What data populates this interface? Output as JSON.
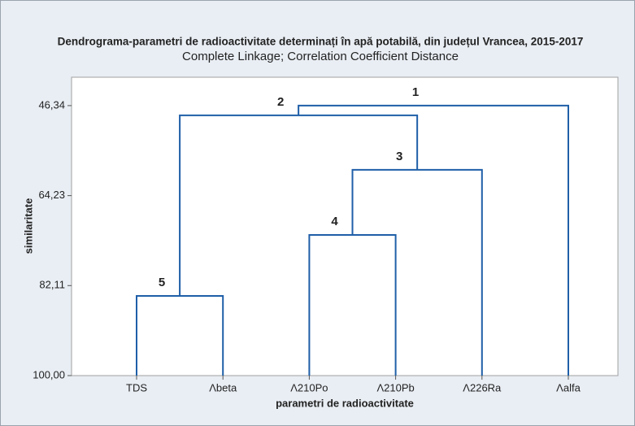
{
  "chart_data": {
    "type": "dendrogram",
    "title": "Dendrograma-parametri de radioactivitate determinați în apă potabilă, din județul Vrancea, 2015-2017",
    "subtitle": "Complete Linkage; Correlation Coefficient Distance",
    "x_label": "parametri de radioactivitate",
    "y_label": "similaritate",
    "categories": [
      "TDS",
      "Λbeta",
      "Λ210Po",
      "Λ210Pb",
      "Λ226Ra",
      "Λalfa"
    ],
    "merges": [
      {
        "label": "5",
        "left": {
          "leaf": 0
        },
        "right": {
          "leaf": 1
        },
        "value": 84.16
      },
      {
        "label": "4",
        "left": {
          "leaf": 2
        },
        "right": {
          "leaf": 3
        },
        "value": 72.04
      },
      {
        "label": "3",
        "left": {
          "merge": 1
        },
        "right": {
          "leaf": 4
        },
        "value": 59.11
      },
      {
        "label": "2",
        "left": {
          "merge": 0
        },
        "right": {
          "merge": 2
        },
        "value": 48.28
      },
      {
        "label": "1",
        "left": {
          "merge": 3
        },
        "right": {
          "leaf": 5
        },
        "value": 46.34
      }
    ],
    "color": "#1f5fa8",
    "ylim": [
      100,
      40.7
    ],
    "yticks": [
      {
        "value": 46.34,
        "label": "46,34"
      },
      {
        "value": 64.23,
        "label": "64,23"
      },
      {
        "value": 82.11,
        "label": "82,11"
      },
      {
        "value": 100,
        "label": "100,00"
      }
    ]
  }
}
